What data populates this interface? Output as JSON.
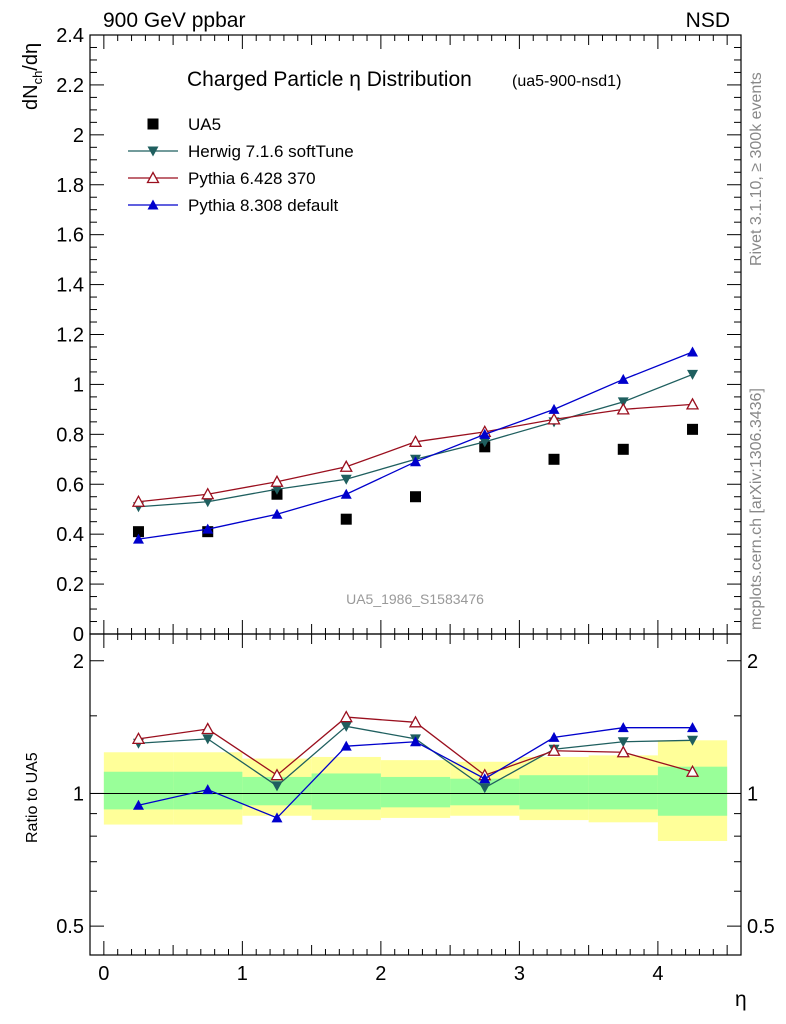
{
  "header": {
    "left": "900 GeV ppbar",
    "right": "NSD"
  },
  "side_labels": {
    "rivet": "Rivet 3.1.10, ≥ 300k events",
    "mcplots": "mcplots.cern.ch [arXiv:1306.3436]"
  },
  "chart_data": [
    {
      "type": "line",
      "title": "Charged Particle η Distribution",
      "subtitle": "(ua5-900-nsd1)",
      "ylabel": "dN_ch/dη",
      "analysis_label": "UA5_1986_S1583476",
      "xlim": [
        -0.1,
        4.6
      ],
      "ylim": [
        0,
        2.4
      ],
      "yticks": [
        0,
        0.2,
        0.4,
        0.6,
        0.8,
        1,
        1.2,
        1.4,
        1.6,
        1.8,
        2,
        2.2,
        2.4
      ],
      "ytick_labels": [
        "0",
        "0.2",
        "0.4",
        "0.6",
        "0.8",
        "1",
        "1.2",
        "1.4",
        "1.6",
        "1.8",
        "2",
        "2.2",
        "2.4"
      ],
      "x": [
        0.25,
        0.75,
        1.25,
        1.75,
        2.25,
        2.75,
        3.25,
        3.75,
        4.25
      ],
      "legend_position": "top-left",
      "series": [
        {
          "name": "UA5",
          "style": "square",
          "color": "#000000",
          "values": [
            0.41,
            0.41,
            0.56,
            0.46,
            0.55,
            0.75,
            0.7,
            0.74,
            0.82
          ]
        },
        {
          "name": "Herwig 7.1.6 softTune",
          "style": "triangle-down",
          "color": "#1f5f5f",
          "values": [
            0.51,
            0.53,
            0.58,
            0.62,
            0.7,
            0.77,
            0.85,
            0.93,
            1.04
          ]
        },
        {
          "name": "Pythia 6.428 370",
          "style": "triangle-up-open",
          "color": "#9a0f1e",
          "values": [
            0.53,
            0.56,
            0.61,
            0.67,
            0.77,
            0.81,
            0.86,
            0.9,
            0.92
          ]
        },
        {
          "name": "Pythia 8.308 default",
          "style": "triangle-up",
          "color": "#0000cc",
          "values": [
            0.38,
            0.42,
            0.48,
            0.56,
            0.69,
            0.8,
            0.9,
            1.02,
            1.13
          ]
        }
      ]
    },
    {
      "type": "line",
      "ylabel": "Ratio to UA5",
      "xlabel": "η",
      "xlim": [
        -0.1,
        4.6
      ],
      "xticks": [
        0,
        1,
        2,
        3,
        4
      ],
      "xtick_labels": [
        "0",
        "1",
        "2",
        "3",
        "4"
      ],
      "yscale": "log",
      "ylim": [
        0.43,
        2.3
      ],
      "yticks": [
        0.5,
        1,
        2
      ],
      "ytick_labels": [
        "0.5",
        "1",
        "2"
      ],
      "x": [
        0.25,
        0.75,
        1.25,
        1.75,
        2.25,
        2.75,
        3.25,
        3.75,
        4.25
      ],
      "bands": {
        "edges": [
          0,
          0.5,
          1,
          1.5,
          2,
          2.5,
          3,
          3.5,
          4,
          4.5
        ],
        "inner": {
          "color": "#99ff99",
          "lo": [
            0.92,
            0.92,
            0.94,
            0.92,
            0.93,
            0.94,
            0.92,
            0.92,
            0.89
          ],
          "hi": [
            1.12,
            1.12,
            1.09,
            1.11,
            1.09,
            1.08,
            1.1,
            1.1,
            1.15
          ]
        },
        "outer": {
          "color": "#ffff99",
          "lo": [
            0.85,
            0.85,
            0.89,
            0.87,
            0.88,
            0.89,
            0.87,
            0.86,
            0.78
          ],
          "hi": [
            1.24,
            1.24,
            1.2,
            1.21,
            1.19,
            1.18,
            1.21,
            1.22,
            1.32
          ]
        }
      },
      "reference_line": 1,
      "series": [
        {
          "name": "Herwig 7.1.6 softTune",
          "style": "triangle-down",
          "color": "#1f5f5f",
          "values": [
            1.3,
            1.33,
            1.04,
            1.42,
            1.33,
            1.03,
            1.26,
            1.31,
            1.32
          ]
        },
        {
          "name": "Pythia 6.428 370",
          "style": "triangle-up-open",
          "color": "#9a0f1e",
          "values": [
            1.33,
            1.4,
            1.1,
            1.49,
            1.45,
            1.1,
            1.25,
            1.24,
            1.12
          ]
        },
        {
          "name": "Pythia 8.308 default",
          "style": "triangle-up",
          "color": "#0000cc",
          "values": [
            0.94,
            1.02,
            0.88,
            1.28,
            1.31,
            1.08,
            1.34,
            1.41,
            1.41
          ]
        }
      ]
    }
  ]
}
